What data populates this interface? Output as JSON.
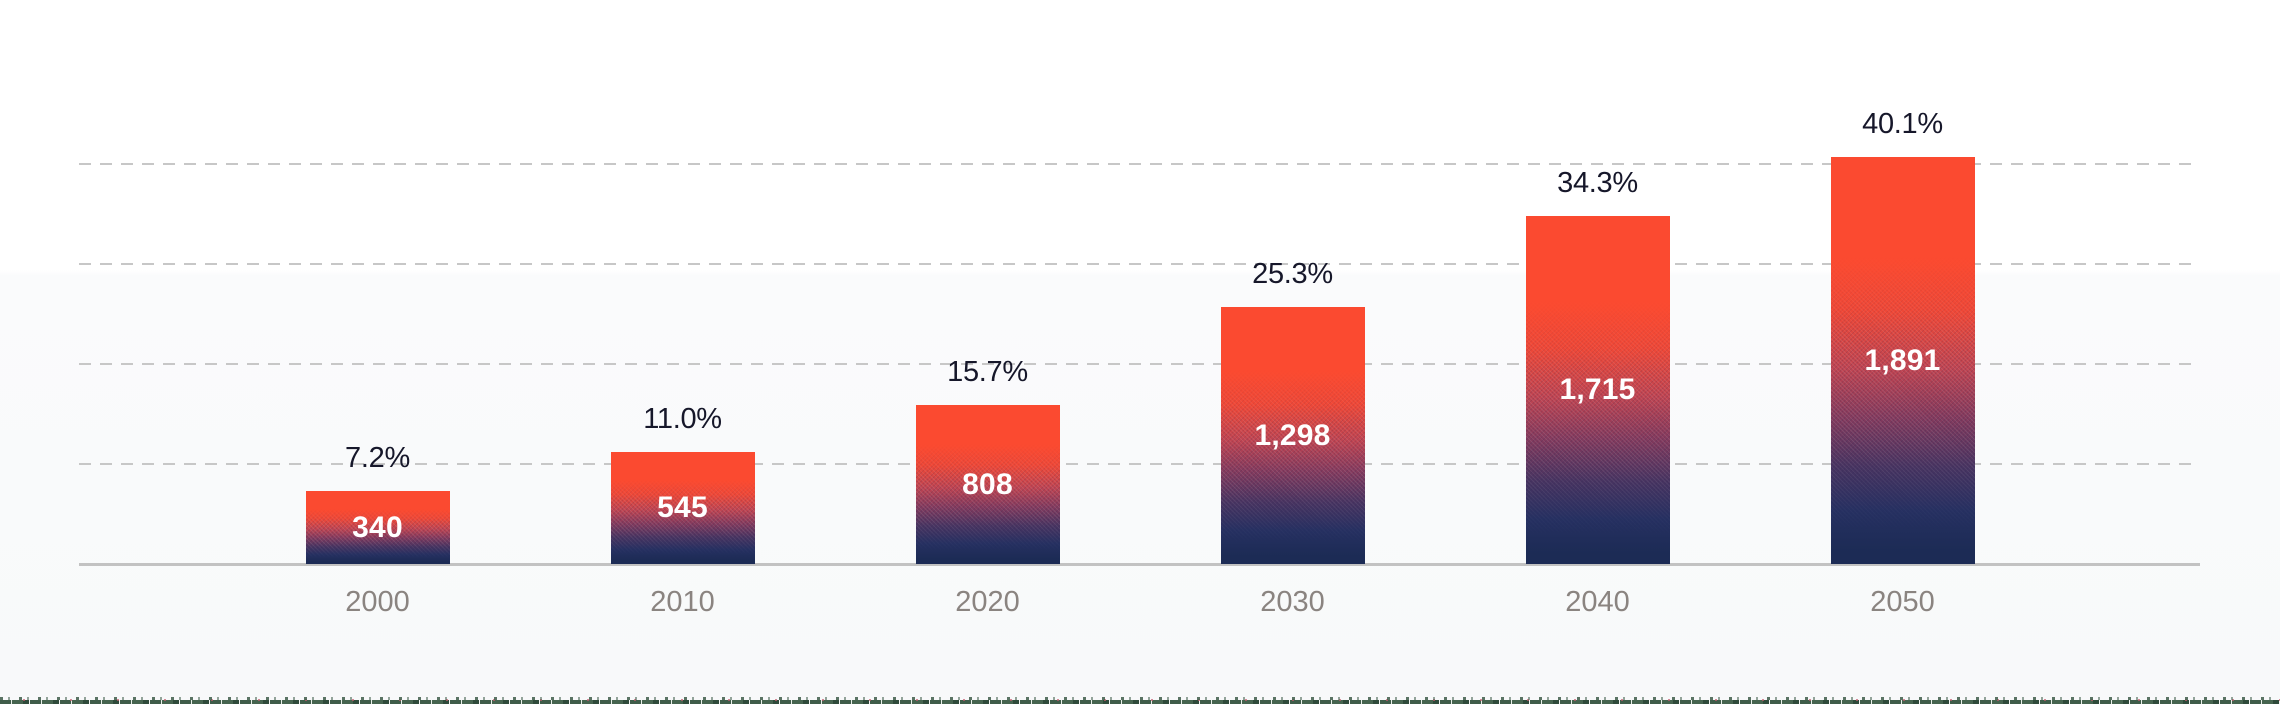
{
  "chart_data": {
    "type": "bar",
    "title": "",
    "categories": [
      "2000",
      "2010",
      "2020",
      "2030",
      "2040",
      "2050"
    ],
    "series": [
      {
        "name": "count",
        "values": [
          340,
          545,
          808,
          1298,
          1715,
          1891
        ],
        "labels": [
          "340",
          "545",
          "808",
          "1,298",
          "1,715",
          "1,891"
        ]
      },
      {
        "name": "share_percent",
        "values": [
          7.2,
          11.0,
          15.7,
          25.3,
          34.3,
          40.1
        ],
        "labels": [
          "7.2%",
          "11.0%",
          "15.7%",
          "25.3%",
          "34.3%",
          "40.1%"
        ]
      }
    ],
    "xlabel": "",
    "ylabel": "",
    "ylim": [
      0,
      45
    ],
    "gridlines_percent": [
      10,
      20,
      30,
      40
    ],
    "grid_style": "dashed horizontal",
    "legend": "none",
    "bar_label_position": "percent above bar, count centered inside bar",
    "bar_gradient": [
      "#fb4a30",
      "#1c2b55"
    ]
  },
  "colors": {
    "background_top": "#ffffff",
    "background_bottom": "#f8f9fa",
    "bar_top": "#fb4a30",
    "bar_bottom": "#1c2b55",
    "percent_label": "#16172a",
    "value_label": "#ffffff",
    "year_label": "#8a8480",
    "gridline": "#c7c7c7",
    "axis_line": "#c2c2c2",
    "ground_strip": "#3f5c49"
  }
}
